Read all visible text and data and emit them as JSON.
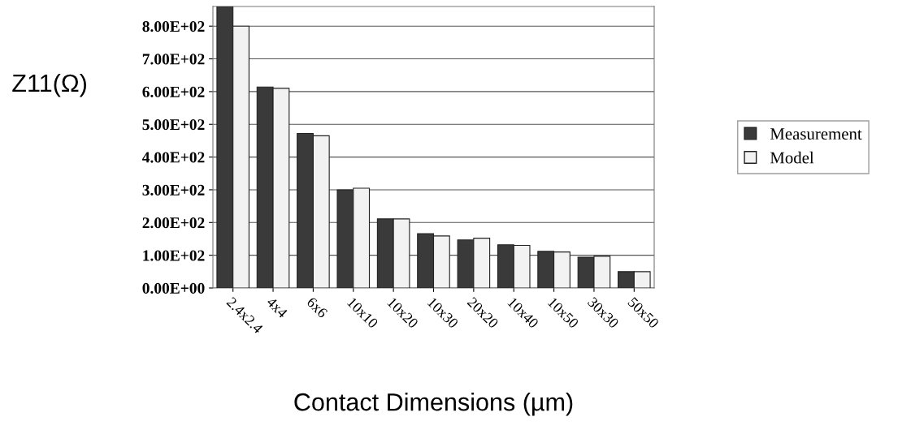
{
  "chart_data": {
    "type": "bar",
    "xlabel": "Contact Dimensions (µm)",
    "ylabel": "Z11(Ω)",
    "categories": [
      "2.4x2.4",
      "4x4",
      "6x6",
      "10x10",
      "10x20",
      "10x30",
      "20x20",
      "10x40",
      "10x50",
      "30x30",
      "50x50"
    ],
    "series": [
      {
        "name": "Measurement",
        "color": "#3a3a3a",
        "values": [
          860,
          614,
          472,
          300,
          211,
          166,
          147,
          132,
          112,
          94,
          50
        ]
      },
      {
        "name": "Model",
        "color": "#f2f2f2",
        "values": [
          800,
          610,
          465,
          305,
          211,
          159,
          152,
          130,
          110,
          97,
          50
        ]
      }
    ],
    "ylim": [
      0,
      860
    ],
    "yticks": [
      {
        "value": 0,
        "label": "0.00E+00"
      },
      {
        "value": 100,
        "label": "1.00E+02"
      },
      {
        "value": 200,
        "label": "2.00E+02"
      },
      {
        "value": 300,
        "label": "3.00E+02"
      },
      {
        "value": 400,
        "label": "4.00E+02"
      },
      {
        "value": 500,
        "label": "5.00E+02"
      },
      {
        "value": 600,
        "label": "6.00E+02"
      },
      {
        "value": 700,
        "label": "7.00E+02"
      },
      {
        "value": 800,
        "label": "8.00E+02"
      }
    ],
    "grid": "y",
    "legend": "right"
  }
}
